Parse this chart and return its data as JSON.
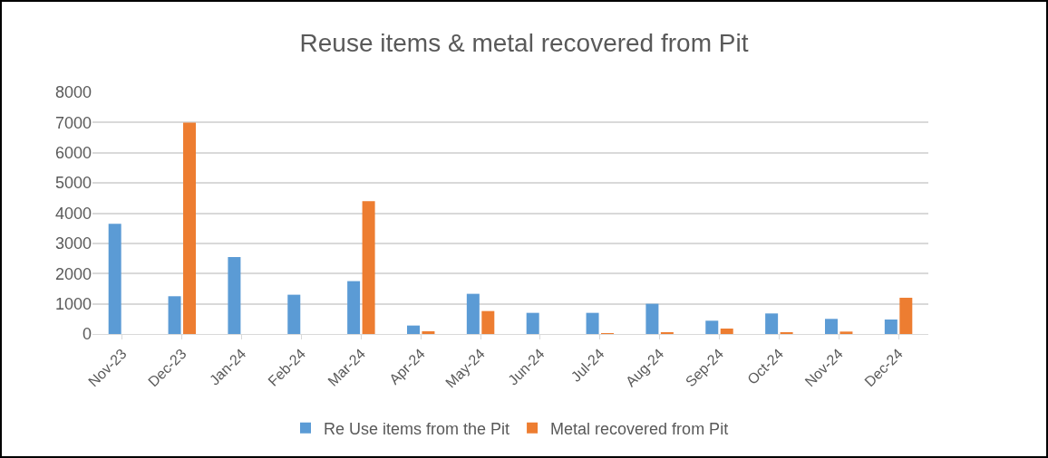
{
  "chart_data": {
    "type": "bar",
    "title": "Reuse items & metal recovered from Pit",
    "categories": [
      "Nov-23",
      "Dec-23",
      "Jan-24",
      "Feb-24",
      "Mar-24",
      "Apr-24",
      "May-24",
      "Jun-24",
      "Jul-24",
      "Aug-24",
      "Sep-24",
      "Oct-24",
      "Nov-24",
      "Dec-24"
    ],
    "series": [
      {
        "name": "Re Use items from the Pit",
        "color": "#5b9bd5",
        "values": [
          3650,
          1250,
          2550,
          1300,
          1750,
          280,
          1330,
          700,
          700,
          1000,
          440,
          680,
          500,
          480
        ]
      },
      {
        "name": "Metal recovered from Pit",
        "color": "#ed7d31",
        "values": [
          0,
          7000,
          0,
          0,
          4400,
          90,
          760,
          0,
          30,
          50,
          180,
          60,
          80,
          1200
        ]
      }
    ],
    "ylim": [
      0,
      8000
    ],
    "yticks": [
      0,
      1000,
      2000,
      3000,
      4000,
      5000,
      6000,
      7000,
      8000
    ],
    "grid": "y",
    "legend": "bottom"
  }
}
